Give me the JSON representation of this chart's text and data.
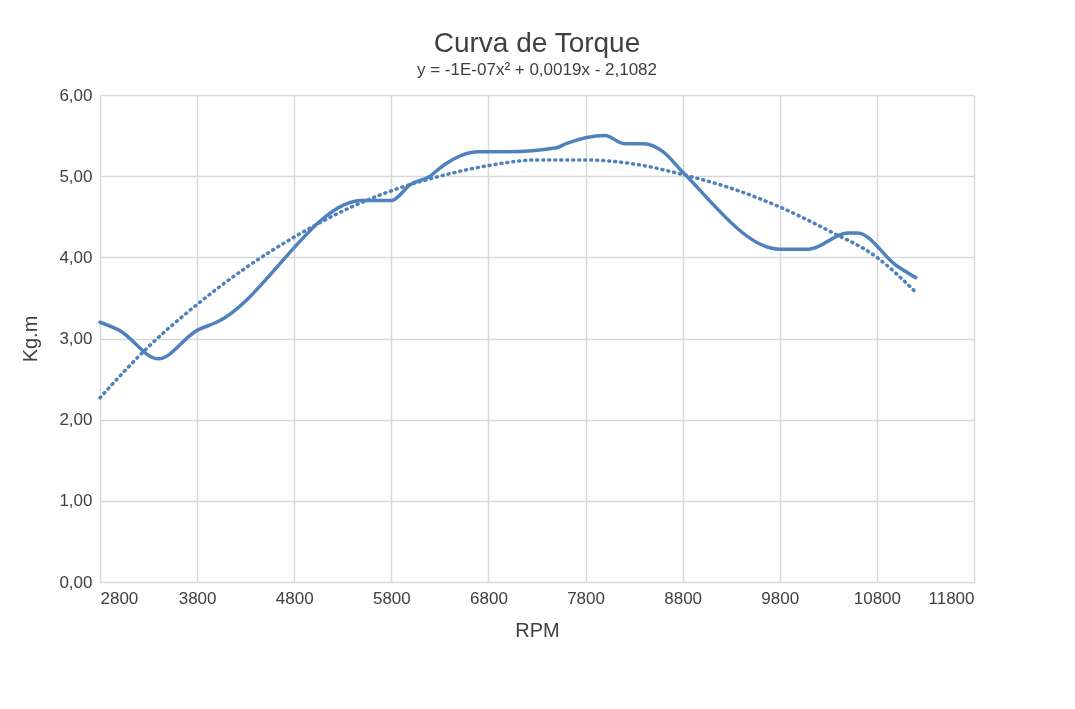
{
  "chart_data": {
    "type": "line",
    "title": "Curva de Torque",
    "subtitle": "y = -1E-07x² + 0,0019x - 2,1082",
    "xlabel": "RPM",
    "ylabel": "Kg.m",
    "x": [
      2800,
      3000,
      3400,
      3800,
      4000,
      5500,
      5800,
      6000,
      6200,
      6300,
      6700,
      7000,
      7500,
      7600,
      8000,
      8200,
      8400,
      8600,
      8800,
      9800,
      10100,
      10500,
      10600,
      11000,
      11200
    ],
    "series": [
      {
        "color": "#4f81bd",
        "line_style": "solid",
        "values": [
          3.2,
          3.1,
          2.75,
          3.1,
          3.2,
          4.7,
          4.7,
          4.9,
          5.0,
          5.1,
          5.3,
          5.3,
          5.35,
          5.4,
          5.5,
          5.4,
          5.4,
          5.3,
          5.05,
          4.1,
          4.1,
          4.3,
          4.3,
          3.9,
          3.75
        ]
      },
      {
        "type": "line",
        "color": "#4f81bd",
        "line_style": "dotted",
        "x": [
          2800,
          3300,
          3800,
          4300,
          4800,
          5300,
          5800,
          6300,
          6800,
          7300,
          7800,
          8300,
          8800,
          9300,
          9800,
          10300,
          10800,
          11200
        ],
        "values": [
          2.27,
          2.9,
          3.42,
          3.87,
          4.25,
          4.57,
          4.82,
          5.0,
          5.13,
          5.2,
          5.2,
          5.15,
          5.02,
          4.85,
          4.62,
          4.33,
          4.0,
          3.57
        ]
      }
    ],
    "xlim": [
      2800,
      11800
    ],
    "xticks": [
      2800,
      3800,
      4800,
      5800,
      6800,
      7800,
      8800,
      9800,
      10800,
      11800
    ],
    "ylim": [
      0,
      6
    ],
    "yticks": [
      {
        "value": 0,
        "label": "0,00"
      },
      {
        "value": 1,
        "label": "1,00"
      },
      {
        "value": 2,
        "label": "2,00"
      },
      {
        "value": 3,
        "label": "3,00"
      },
      {
        "value": 4,
        "label": "4,00"
      },
      {
        "value": 5,
        "label": "5,00"
      },
      {
        "value": 6,
        "label": "6,00"
      }
    ],
    "grid": true
  }
}
